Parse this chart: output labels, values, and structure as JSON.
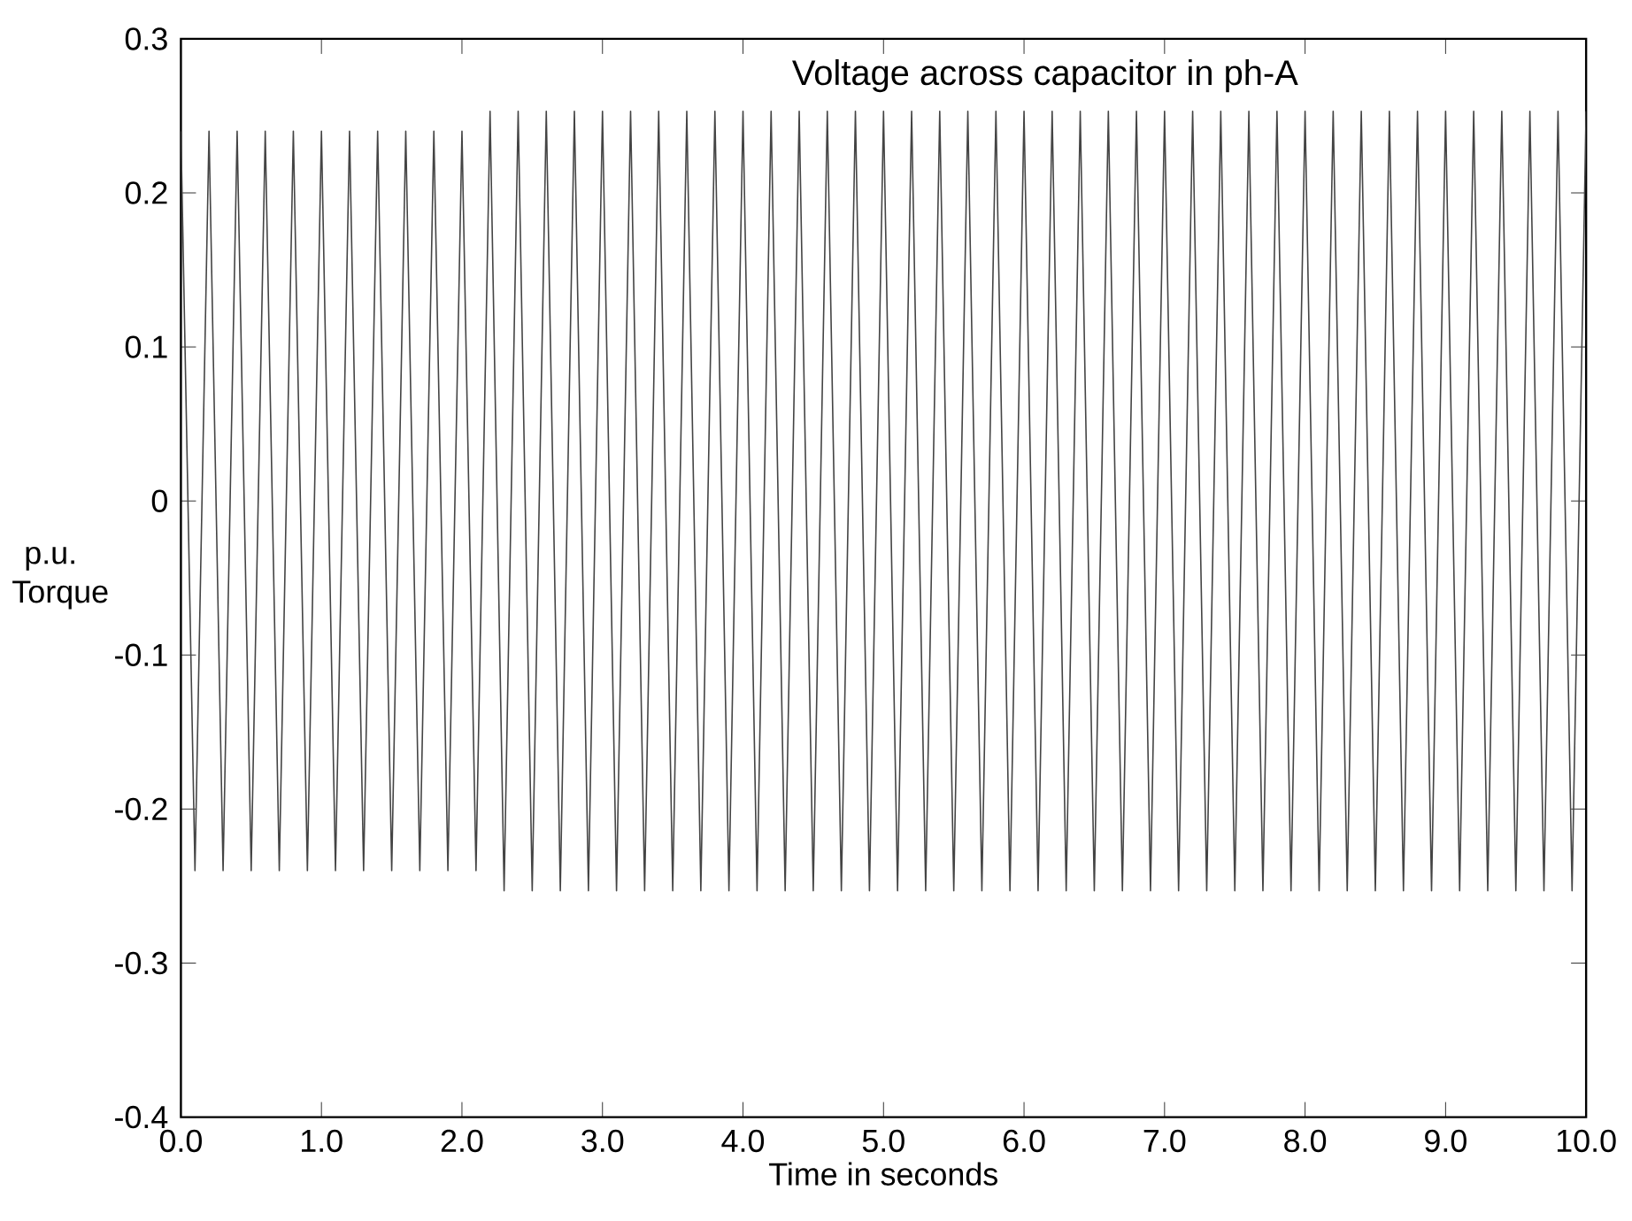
{
  "chart_data": {
    "type": "line",
    "title": "Voltage across capacitor in ph-A",
    "xlabel": "Time in seconds",
    "ylabel": "p.u. Torque",
    "x": [
      0.0,
      0.1,
      0.2,
      0.3,
      0.4,
      0.5,
      0.6,
      0.7,
      0.8,
      0.9,
      1.0,
      1.1,
      1.2,
      1.3,
      1.4,
      1.5,
      1.6,
      1.7,
      1.8,
      1.9,
      2.0,
      2.1,
      2.2,
      2.3,
      2.4,
      2.5,
      2.6,
      2.7,
      2.8,
      2.9,
      3.0,
      3.1,
      3.2,
      3.3,
      3.4,
      3.5,
      3.6,
      3.7,
      3.8,
      3.9,
      4.0,
      4.1,
      4.2,
      4.3,
      4.4,
      4.5,
      4.6,
      4.7,
      4.8,
      4.9,
      5.0,
      5.1,
      5.2,
      5.3,
      5.4,
      5.5,
      5.6,
      5.7,
      5.8,
      5.9,
      6.0,
      6.1,
      6.2,
      6.3,
      6.4,
      6.5,
      6.6,
      6.7,
      6.8,
      6.9,
      7.0,
      7.1,
      7.2,
      7.3,
      7.4,
      7.5,
      7.6,
      7.7,
      7.8,
      7.9,
      8.0,
      8.1,
      8.2,
      8.3,
      8.4,
      8.5,
      8.6,
      8.7,
      8.8,
      8.9,
      9.0,
      9.1,
      9.2,
      9.3,
      9.4,
      9.5,
      9.6,
      9.7,
      9.8,
      9.9,
      10.0
    ],
    "series": [
      {
        "color": "#444444",
        "values": [
          0.24,
          -0.24,
          0.24,
          -0.24,
          0.24,
          -0.24,
          0.24,
          -0.24,
          0.24,
          -0.24,
          0.24,
          -0.24,
          0.24,
          -0.24,
          0.24,
          -0.24,
          0.24,
          -0.24,
          0.24,
          -0.24,
          0.24,
          -0.24,
          0.253,
          -0.253,
          0.253,
          -0.253,
          0.253,
          -0.253,
          0.253,
          -0.253,
          0.253,
          -0.253,
          0.253,
          -0.253,
          0.253,
          -0.253,
          0.253,
          -0.253,
          0.253,
          -0.253,
          0.253,
          -0.253,
          0.253,
          -0.253,
          0.253,
          -0.253,
          0.253,
          -0.253,
          0.253,
          -0.253,
          0.253,
          -0.253,
          0.253,
          -0.253,
          0.253,
          -0.253,
          0.253,
          -0.253,
          0.253,
          -0.253,
          0.253,
          -0.253,
          0.253,
          -0.253,
          0.253,
          -0.253,
          0.253,
          -0.253,
          0.253,
          -0.253,
          0.253,
          -0.253,
          0.253,
          -0.253,
          0.253,
          -0.253,
          0.253,
          -0.253,
          0.253,
          -0.253,
          0.253,
          -0.253,
          0.253,
          -0.253,
          0.253,
          -0.253,
          0.253,
          -0.253,
          0.253,
          -0.253,
          0.253,
          -0.253,
          0.253,
          -0.253,
          0.253,
          -0.253,
          0.253,
          -0.253,
          0.253,
          -0.253,
          0.253
        ]
      }
    ],
    "xlim": [
      0,
      10
    ],
    "ylim": [
      -0.4,
      0.3
    ],
    "xticks": [
      {
        "value": 0,
        "label": "0.0"
      },
      {
        "value": 1,
        "label": "1.0"
      },
      {
        "value": 2,
        "label": "2.0"
      },
      {
        "value": 3,
        "label": "3.0"
      },
      {
        "value": 4,
        "label": "4.0"
      },
      {
        "value": 5,
        "label": "5.0"
      },
      {
        "value": 6,
        "label": "6.0"
      },
      {
        "value": 7,
        "label": "7.0"
      },
      {
        "value": 8,
        "label": "8.0"
      },
      {
        "value": 9,
        "label": "9.0"
      },
      {
        "value": 10,
        "label": "10.0"
      }
    ],
    "yticks": [
      -0.4,
      -0.3,
      -0.2,
      -0.1,
      0,
      0.1,
      0.2,
      0.3
    ],
    "marker": "none",
    "line_style": "solid"
  }
}
